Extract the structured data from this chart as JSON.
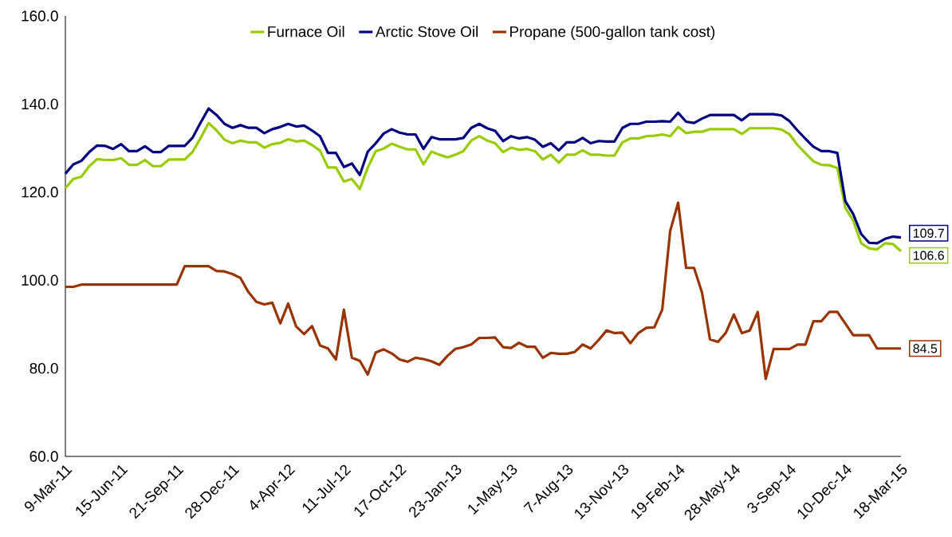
{
  "chart_data": {
    "type": "line",
    "categories": [
      "9-Mar-11",
      null,
      null,
      null,
      null,
      null,
      null,
      "15-Jun-11",
      null,
      null,
      null,
      null,
      null,
      null,
      "21-Sep-11",
      null,
      null,
      null,
      null,
      null,
      null,
      "28-Dec-11",
      null,
      null,
      null,
      null,
      null,
      null,
      "4-Apr-12",
      null,
      null,
      null,
      null,
      null,
      null,
      "11-Jul-12",
      null,
      null,
      null,
      null,
      null,
      null,
      "17-Oct-12",
      null,
      null,
      null,
      null,
      null,
      null,
      "23-Jan-13",
      null,
      null,
      null,
      null,
      null,
      null,
      "1-May-13",
      null,
      null,
      null,
      null,
      null,
      null,
      "7-Aug-13",
      null,
      null,
      null,
      null,
      null,
      null,
      "13-Nov-13",
      null,
      null,
      null,
      null,
      null,
      null,
      "19-Feb-14",
      null,
      null,
      null,
      null,
      null,
      null,
      "28-May-14",
      null,
      null,
      null,
      null,
      null,
      null,
      "3-Sep-14",
      null,
      null,
      null,
      null,
      null,
      null,
      "10-Dec-14",
      null,
      null,
      null,
      null,
      null,
      null,
      "18-Mar-15"
    ],
    "series": [
      {
        "name": "Furnace Oil",
        "color": "#99cc00",
        "values": [
          120.9,
          123.0,
          123.5,
          125.9,
          127.5,
          127.3,
          127.3,
          127.7,
          126.2,
          126.2,
          127.3,
          125.9,
          125.9,
          127.4,
          127.4,
          127.4,
          129.2,
          132.3,
          135.7,
          134.0,
          131.9,
          131.1,
          131.7,
          131.3,
          131.3,
          130.1,
          130.9,
          131.2,
          132.0,
          131.5,
          131.7,
          130.7,
          129.4,
          125.6,
          125.6,
          122.4,
          123.0,
          120.7,
          125.6,
          129.3,
          129.9,
          131.0,
          130.3,
          129.7,
          129.7,
          126.3,
          129.2,
          128.5,
          127.9,
          128.5,
          129.3,
          131.7,
          132.7,
          131.7,
          131.1,
          129.1,
          130.1,
          129.6,
          129.8,
          129.3,
          127.4,
          128.5,
          126.7,
          128.5,
          128.5,
          129.5,
          128.5,
          128.5,
          128.3,
          128.3,
          131.3,
          132.2,
          132.2,
          132.7,
          132.8,
          133.1,
          132.7,
          134.8,
          133.4,
          133.7,
          133.7,
          134.3,
          134.3,
          134.3,
          134.3,
          133.2,
          134.5,
          134.5,
          134.5,
          134.5,
          134.2,
          133.1,
          130.7,
          128.8,
          127.0,
          126.2,
          126.1,
          125.5,
          116.5,
          113.5,
          108.4,
          107.2,
          107.0,
          108.4,
          108.2,
          106.6
        ],
        "value_labels": [
          null,
          null,
          null,
          null,
          null,
          null,
          null,
          null,
          null,
          null,
          null,
          null,
          null,
          null,
          null,
          null,
          null,
          null,
          null,
          null,
          null,
          null,
          null,
          null,
          null,
          null,
          null,
          null,
          null,
          null,
          null,
          null,
          null,
          null,
          null,
          null,
          null,
          null,
          null,
          null,
          null,
          null,
          null,
          null,
          null,
          null,
          null,
          null,
          null,
          null,
          null,
          null,
          null,
          null,
          null,
          null,
          null,
          null,
          null,
          null,
          null,
          null,
          null,
          null,
          null,
          null,
          null,
          null,
          null,
          null,
          null,
          null,
          null,
          null,
          null,
          null,
          null,
          null,
          null,
          null,
          null,
          null,
          null,
          null,
          null,
          null,
          null,
          null,
          null,
          null,
          null,
          null,
          null,
          null,
          null,
          null,
          null,
          null,
          null,
          null,
          null,
          null,
          null,
          null,
          null,
          "106.6"
        ]
      },
      {
        "name": "Arctic Stove Oil",
        "color": "#000080",
        "values": [
          124.2,
          126.3,
          127.1,
          129.1,
          130.6,
          130.5,
          129.8,
          130.9,
          129.3,
          129.3,
          130.4,
          129.1,
          129.1,
          130.5,
          130.5,
          130.5,
          132.4,
          135.8,
          139.0,
          137.5,
          135.5,
          134.6,
          135.2,
          134.6,
          134.6,
          133.4,
          134.3,
          134.8,
          135.5,
          134.9,
          135.1,
          134.0,
          132.7,
          128.9,
          128.9,
          125.7,
          126.5,
          123.9,
          129.2,
          131.1,
          133.3,
          134.3,
          133.5,
          133.1,
          133.1,
          129.8,
          132.5,
          132.0,
          132.0,
          132.0,
          132.3,
          134.6,
          135.5,
          134.5,
          133.9,
          131.6,
          132.7,
          132.2,
          132.5,
          131.9,
          130.3,
          131.1,
          129.5,
          131.3,
          131.3,
          132.3,
          131.1,
          131.6,
          131.5,
          131.5,
          134.6,
          135.5,
          135.5,
          136.0,
          136.0,
          136.1,
          136.0,
          138.0,
          136.0,
          135.7,
          136.7,
          137.5,
          137.5,
          137.5,
          137.5,
          136.3,
          137.7,
          137.7,
          137.7,
          137.7,
          137.4,
          136.1,
          134.0,
          132.1,
          130.3,
          129.3,
          129.3,
          128.9,
          118.0,
          115.0,
          110.5,
          108.5,
          108.4,
          109.4,
          109.9,
          109.7
        ],
        "value_labels": [
          null,
          null,
          null,
          null,
          null,
          null,
          null,
          null,
          null,
          null,
          null,
          null,
          null,
          null,
          null,
          null,
          null,
          null,
          null,
          null,
          null,
          null,
          null,
          null,
          null,
          null,
          null,
          null,
          null,
          null,
          null,
          null,
          null,
          null,
          null,
          null,
          null,
          null,
          null,
          null,
          null,
          null,
          null,
          null,
          null,
          null,
          null,
          null,
          null,
          null,
          null,
          null,
          null,
          null,
          null,
          null,
          null,
          null,
          null,
          null,
          null,
          null,
          null,
          null,
          null,
          null,
          null,
          null,
          null,
          null,
          null,
          null,
          null,
          null,
          null,
          null,
          null,
          null,
          null,
          null,
          null,
          null,
          null,
          null,
          null,
          null,
          null,
          null,
          null,
          null,
          null,
          null,
          null,
          null,
          null,
          null,
          null,
          null,
          null,
          null,
          null,
          null,
          null,
          null,
          null,
          "109.7"
        ]
      },
      {
        "name": "Propane (500-gallon tank cost)",
        "color": "#993300",
        "values": [
          98.5,
          98.5,
          99.0,
          99.0,
          99.0,
          99.0,
          99.0,
          99.0,
          99.0,
          99.0,
          99.0,
          99.0,
          99.0,
          99.0,
          99.0,
          103.2,
          103.2,
          103.2,
          103.2,
          102.1,
          102.0,
          101.4,
          100.5,
          97.3,
          95.1,
          94.5,
          94.9,
          90.2,
          94.7,
          89.5,
          87.8,
          89.6,
          85.2,
          84.5,
          82.0,
          93.3,
          82.4,
          81.7,
          78.6,
          83.6,
          84.3,
          83.4,
          82.0,
          81.5,
          82.4,
          82.1,
          81.6,
          80.8,
          82.8,
          84.4,
          84.8,
          85.4,
          86.9,
          86.9,
          87.0,
          84.8,
          84.6,
          85.8,
          84.9,
          84.9,
          82.4,
          83.5,
          83.3,
          83.3,
          83.7,
          85.4,
          84.5,
          86.4,
          88.6,
          88.0,
          88.1,
          85.7,
          88.0,
          89.2,
          89.3,
          93.3,
          111.2,
          117.6,
          102.8,
          102.8,
          97.2,
          86.6,
          86.0,
          88.1,
          92.2,
          88.0,
          88.6,
          92.8,
          77.6,
          84.4,
          84.4,
          84.4,
          85.4,
          85.4,
          90.7,
          90.7,
          92.8,
          92.8,
          90.2,
          87.5,
          87.5,
          87.5,
          84.5,
          84.5,
          84.5,
          84.5
        ],
        "value_labels": [
          null,
          null,
          null,
          null,
          null,
          null,
          null,
          null,
          null,
          null,
          null,
          null,
          null,
          null,
          null,
          null,
          null,
          null,
          null,
          null,
          null,
          null,
          null,
          null,
          null,
          null,
          null,
          null,
          null,
          null,
          null,
          null,
          null,
          null,
          null,
          null,
          null,
          null,
          null,
          null,
          null,
          null,
          null,
          null,
          null,
          null,
          null,
          null,
          null,
          null,
          null,
          null,
          null,
          null,
          null,
          null,
          null,
          null,
          null,
          null,
          null,
          null,
          null,
          null,
          null,
          null,
          null,
          null,
          null,
          null,
          null,
          null,
          null,
          null,
          null,
          null,
          null,
          null,
          null,
          null,
          null,
          null,
          null,
          null,
          null,
          null,
          null,
          null,
          null,
          null,
          null,
          null,
          null,
          null,
          null,
          null,
          null,
          null,
          null,
          null,
          null,
          null,
          null,
          null,
          null,
          "84.5"
        ]
      }
    ],
    "ylim": [
      60,
      160
    ],
    "yticks": [
      {
        "value": 60,
        "label": "60.0"
      },
      {
        "value": 80,
        "label": "80.0"
      },
      {
        "value": 100,
        "label": "100.0"
      },
      {
        "value": 120,
        "label": "120.0"
      },
      {
        "value": 140,
        "label": "140.0"
      },
      {
        "value": 160,
        "label": "160.0"
      }
    ],
    "legend": "top",
    "marker": "none",
    "line_style": "solid"
  }
}
